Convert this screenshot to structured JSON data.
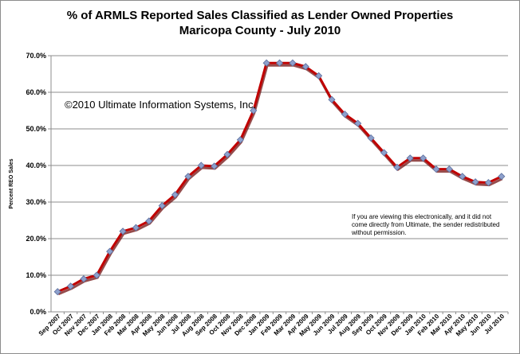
{
  "chart_data": {
    "type": "line",
    "title": "% of ARMLS Reported Sales Classified as Lender Owned Properties",
    "subtitle": "Maricopa County - July 2010",
    "ylabel": "Percent REO Sales",
    "xlabel": "",
    "ylim": [
      0,
      70
    ],
    "y_ticks": [
      "0.0%",
      "10.0%",
      "20.0%",
      "30.0%",
      "40.0%",
      "50.0%",
      "60.0%",
      "70.0%"
    ],
    "grid": true,
    "legend": "none",
    "categories": [
      "Sep 2007",
      "Oct 2007",
      "Nov 2007",
      "Dec 2007",
      "Jan 2008",
      "Feb 2008",
      "Mar 2008",
      "Apr 2008",
      "May 2008",
      "Jun 2008",
      "Jul 2008",
      "Aug 2008",
      "Sep 2008",
      "Oct 2008",
      "Nov 2008",
      "Dec 2008",
      "Jan 2009",
      "Feb 2009",
      "Mar 2009",
      "Apr 2009",
      "May 2009",
      "Jun 2009",
      "Jul 2009",
      "Aug 2009",
      "Sep 2009",
      "Oct 2009",
      "Nov 2009",
      "Dec 2009",
      "Jan 2010",
      "Feb 2010",
      "Mar 2010",
      "Apr 2010",
      "May 2010",
      "Jun 2010",
      "Jul 2010"
    ],
    "series": [
      {
        "values": [
          5.5,
          7.0,
          9.0,
          10.0,
          16.5,
          22.0,
          23.0,
          24.8,
          29.0,
          32.0,
          37.0,
          40.0,
          39.8,
          43.0,
          47.0,
          55.0,
          68.0,
          68.0,
          68.0,
          67.0,
          64.5,
          58.0,
          54.0,
          51.5,
          47.5,
          43.5,
          39.5,
          42.0,
          42.0,
          39.0,
          39.0,
          37.0,
          35.5,
          35.3,
          37.0
        ],
        "color": "#c00000",
        "marker_color": "#8ea0cc"
      }
    ],
    "annotations": {
      "copyright": "©2010 Ultimate Information Systems, Inc.",
      "note_lines": [
        "If you are viewing this electronically, and it did not",
        "come directly from Ultimate, the sender redistributed",
        "without permission."
      ]
    }
  }
}
